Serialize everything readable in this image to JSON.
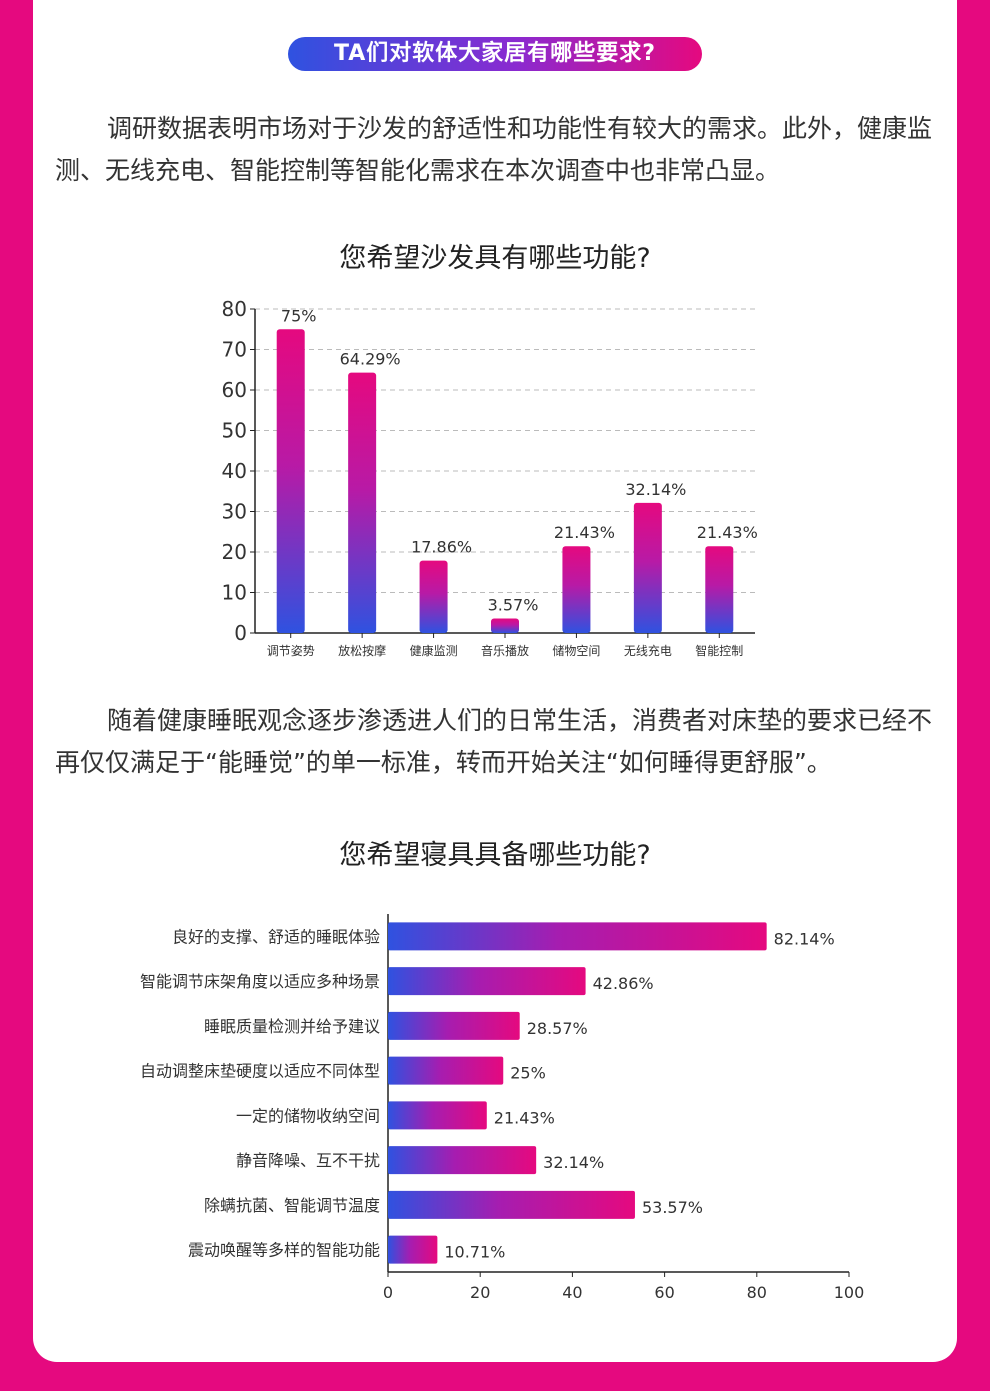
{
  "header": {
    "pill_title": "TA们对软体大家居有哪些要求?"
  },
  "intro1": "调研数据表明市场对于沙发的舒适性和功能性有较大的需求。此外，健康监测、无线充电、智能控制等智能化需求在本次调查中也非常凸显。",
  "intro2": "随着健康睡眠观念逐步渗透进人们的日常生活，消费者对床垫的要求已经不再仅仅满足于“能睡觉”的单一标准，转而开始关注“如何睡得更舒服”。",
  "colors": {
    "blue": "#2f52e0",
    "pink": "#e5097f",
    "grid": "#bbbbbb"
  },
  "chart_data": [
    {
      "type": "bar",
      "title": "您希望沙发具有哪些功能?",
      "categories": [
        "调节姿势",
        "放松按摩",
        "健康监测",
        "音乐播放",
        "储物空间",
        "无线充电",
        "智能控制"
      ],
      "values": [
        75,
        64.29,
        17.86,
        3.57,
        21.43,
        32.14,
        21.43
      ],
      "data_labels": [
        "75%",
        "64.29%",
        "17.86%",
        "3.57%",
        "21.43%",
        "32.14%",
        "21.43%"
      ],
      "ylim": [
        0,
        80
      ],
      "yticks": [
        "0",
        "10",
        "20",
        "30",
        "40",
        "50",
        "60",
        "70",
        "80"
      ],
      "grid": true
    },
    {
      "type": "bar",
      "orientation": "horizontal",
      "title": "您希望寝具具备哪些功能?",
      "categories": [
        "良好的支撑、舒适的睡眠体验",
        "智能调节床架角度以适应多种场景",
        "睡眠质量检测并给予建议",
        "自动调整床垫硬度以适应不同体型",
        "一定的储物收纳空间",
        "静音降噪、互不干扰",
        "除螨抗菌、智能调节温度",
        "震动唤醒等多样的智能功能"
      ],
      "values": [
        82.14,
        42.86,
        28.57,
        25,
        21.43,
        32.14,
        53.57,
        10.71
      ],
      "data_labels": [
        "82.14%",
        "42.86%",
        "28.57%",
        "25%",
        "21.43%",
        "32.14%",
        "53.57%",
        "10.71%"
      ],
      "xlim": [
        0,
        100
      ],
      "xticks": [
        "0",
        "20",
        "40",
        "60",
        "80",
        "100"
      ],
      "grid": false
    }
  ]
}
